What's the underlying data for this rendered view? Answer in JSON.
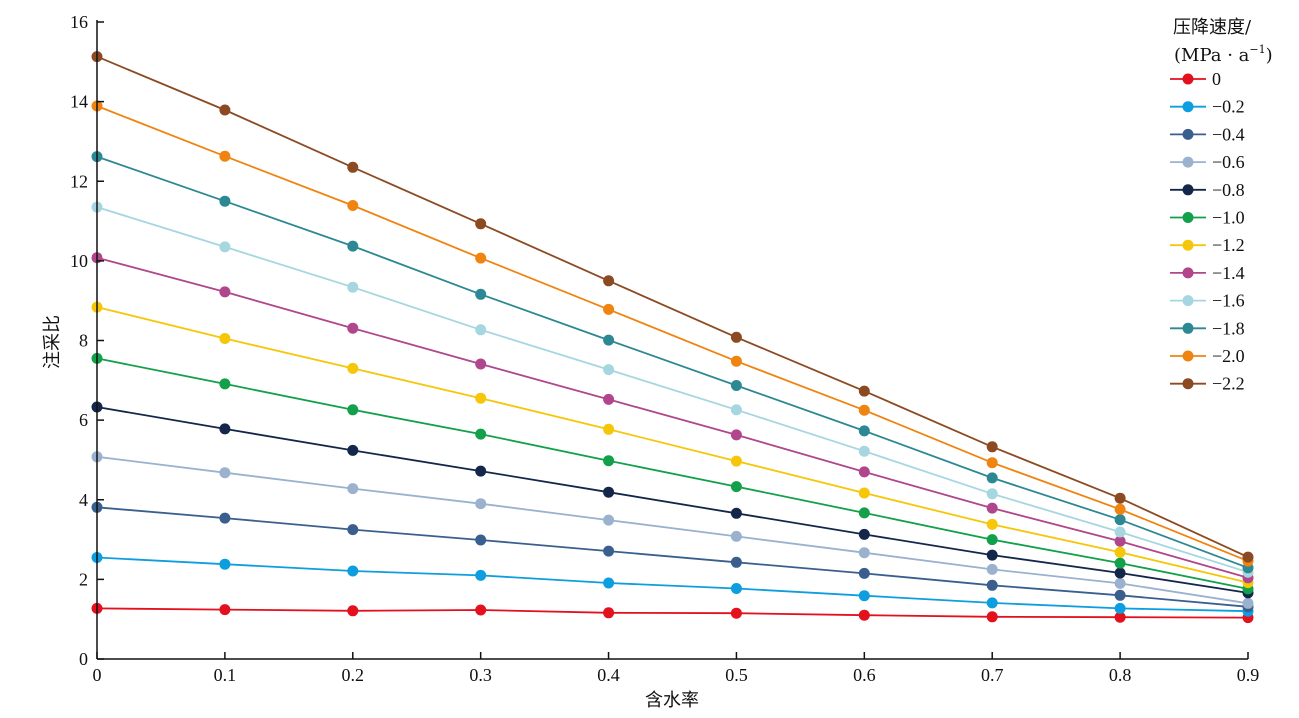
{
  "chart_data": {
    "type": "line",
    "title": "",
    "xlabel": "含水率",
    "ylabel": "注采比",
    "xlim": [
      0,
      0.9
    ],
    "ylim": [
      0,
      16
    ],
    "x_ticks": [
      "0",
      "0.1",
      "0.2",
      "0.3",
      "0.4",
      "0.5",
      "0.6",
      "0.7",
      "0.8",
      "0.9"
    ],
    "y_ticks": [
      "0",
      "2",
      "4",
      "6",
      "8",
      "10",
      "12",
      "14",
      "16"
    ],
    "grid": false,
    "legend": {
      "title_line1": "压降速度/",
      "title_line2": "(MPa · a",
      "title_sup": "−1",
      "title_close": ")",
      "placement": "top-right"
    },
    "x": [
      0,
      0.1,
      0.2,
      0.3,
      0.4,
      0.5,
      0.6,
      0.7,
      0.8,
      0.9
    ],
    "series": [
      {
        "name": "0",
        "color": "#e3101d",
        "values": [
          1.27,
          1.24,
          1.21,
          1.23,
          1.16,
          1.15,
          1.1,
          1.06,
          1.05,
          1.04
        ]
      },
      {
        "name": "−0.2",
        "color": "#0d9ee0",
        "values": [
          2.55,
          2.38,
          2.21,
          2.1,
          1.91,
          1.77,
          1.59,
          1.41,
          1.27,
          1.2
        ]
      },
      {
        "name": "−0.4",
        "color": "#3a5f8f",
        "values": [
          3.81,
          3.54,
          3.25,
          2.99,
          2.71,
          2.43,
          2.15,
          1.85,
          1.6,
          1.31
        ]
      },
      {
        "name": "−0.6",
        "color": "#9ab2ce",
        "values": [
          5.08,
          4.68,
          4.28,
          3.9,
          3.49,
          3.08,
          2.67,
          2.25,
          1.9,
          1.4
        ]
      },
      {
        "name": "−0.8",
        "color": "#14274a",
        "values": [
          6.33,
          5.78,
          5.24,
          4.72,
          4.19,
          3.66,
          3.13,
          2.61,
          2.16,
          1.66
        ]
      },
      {
        "name": "−1.0",
        "color": "#12a04a",
        "values": [
          7.55,
          6.91,
          6.26,
          5.65,
          4.98,
          4.33,
          3.67,
          3.0,
          2.41,
          1.76
        ]
      },
      {
        "name": "−1.2",
        "color": "#f6c609",
        "values": [
          8.84,
          8.05,
          7.3,
          6.55,
          5.77,
          4.97,
          4.17,
          3.38,
          2.68,
          1.92
        ]
      },
      {
        "name": "−1.4",
        "color": "#b0468b",
        "values": [
          10.08,
          9.22,
          8.31,
          7.41,
          6.52,
          5.63,
          4.7,
          3.79,
          2.96,
          2.04
        ]
      },
      {
        "name": "−1.6",
        "color": "#a6d6e0",
        "values": [
          11.35,
          10.35,
          9.34,
          8.27,
          7.27,
          6.26,
          5.22,
          4.15,
          3.19,
          2.18
        ]
      },
      {
        "name": "−1.8",
        "color": "#2c8994",
        "values": [
          12.62,
          11.5,
          10.37,
          9.16,
          8.01,
          6.87,
          5.73,
          4.55,
          3.5,
          2.29
        ]
      },
      {
        "name": "−2.0",
        "color": "#ef8410",
        "values": [
          13.89,
          12.63,
          11.39,
          10.07,
          8.78,
          7.48,
          6.25,
          4.93,
          3.76,
          2.46
        ]
      },
      {
        "name": "−2.2",
        "color": "#8c4a22",
        "values": [
          15.13,
          13.79,
          12.35,
          10.93,
          9.5,
          8.08,
          6.73,
          5.33,
          4.04,
          2.56
        ]
      }
    ]
  }
}
